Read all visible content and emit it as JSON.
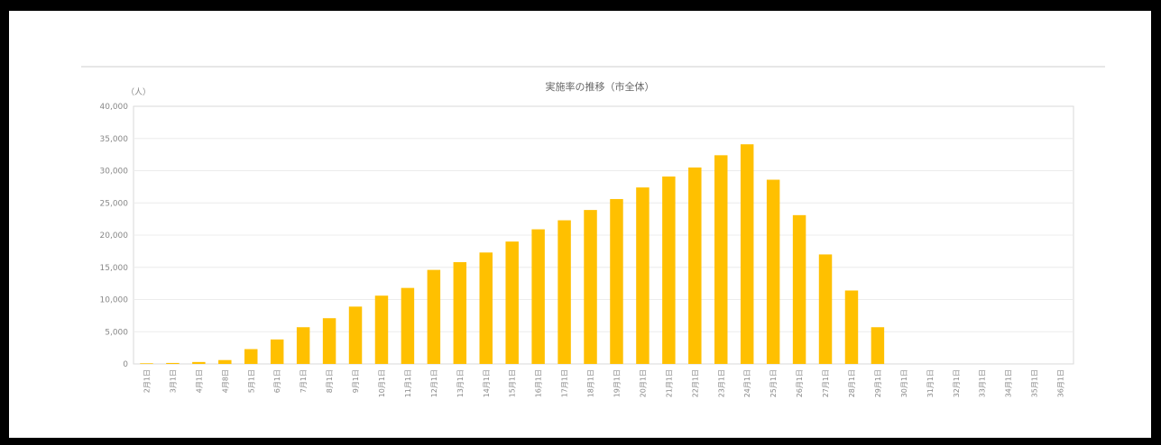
{
  "chart_data": {
    "type": "bar",
    "title": "実施率の推移（市全体）",
    "unit_label": "（人）",
    "ylim": [
      0,
      40000
    ],
    "yticks": [
      "0",
      "5,000",
      "10,000",
      "15,000",
      "20,000",
      "25,000",
      "30,000",
      "35,000",
      "40,000"
    ],
    "categories": [
      "2月1日",
      "3月1日",
      "4月1日",
      "4月8日",
      "5月1日",
      "6月1日",
      "7月1日",
      "8月1日",
      "9月1日",
      "10月1日",
      "11月1日",
      "12月1日",
      "13月1日",
      "14月1日",
      "15月1日",
      "16月1日",
      "17月1日",
      "18月1日",
      "19月1日",
      "20月1日",
      "21月1日",
      "22月1日",
      "23月1日",
      "24月1日",
      "25月1日",
      "26月1日",
      "27月1日",
      "28月1日",
      "29月1日",
      "30月1日",
      "31月1日",
      "32月1日",
      "33月1日",
      "34月1日",
      "35月1日",
      "36月1日"
    ],
    "values": [
      100,
      150,
      300,
      600,
      2300,
      3800,
      5700,
      7100,
      8900,
      10600,
      11800,
      14600,
      15800,
      17300,
      19000,
      20900,
      22300,
      23900,
      25600,
      27400,
      29100,
      30500,
      32400,
      34100,
      28600,
      23100,
      17000,
      11400,
      5700,
      0,
      0,
      0,
      0,
      0,
      0,
      0
    ],
    "bar_color": "#FFC000",
    "grid": true,
    "legend": "none"
  }
}
